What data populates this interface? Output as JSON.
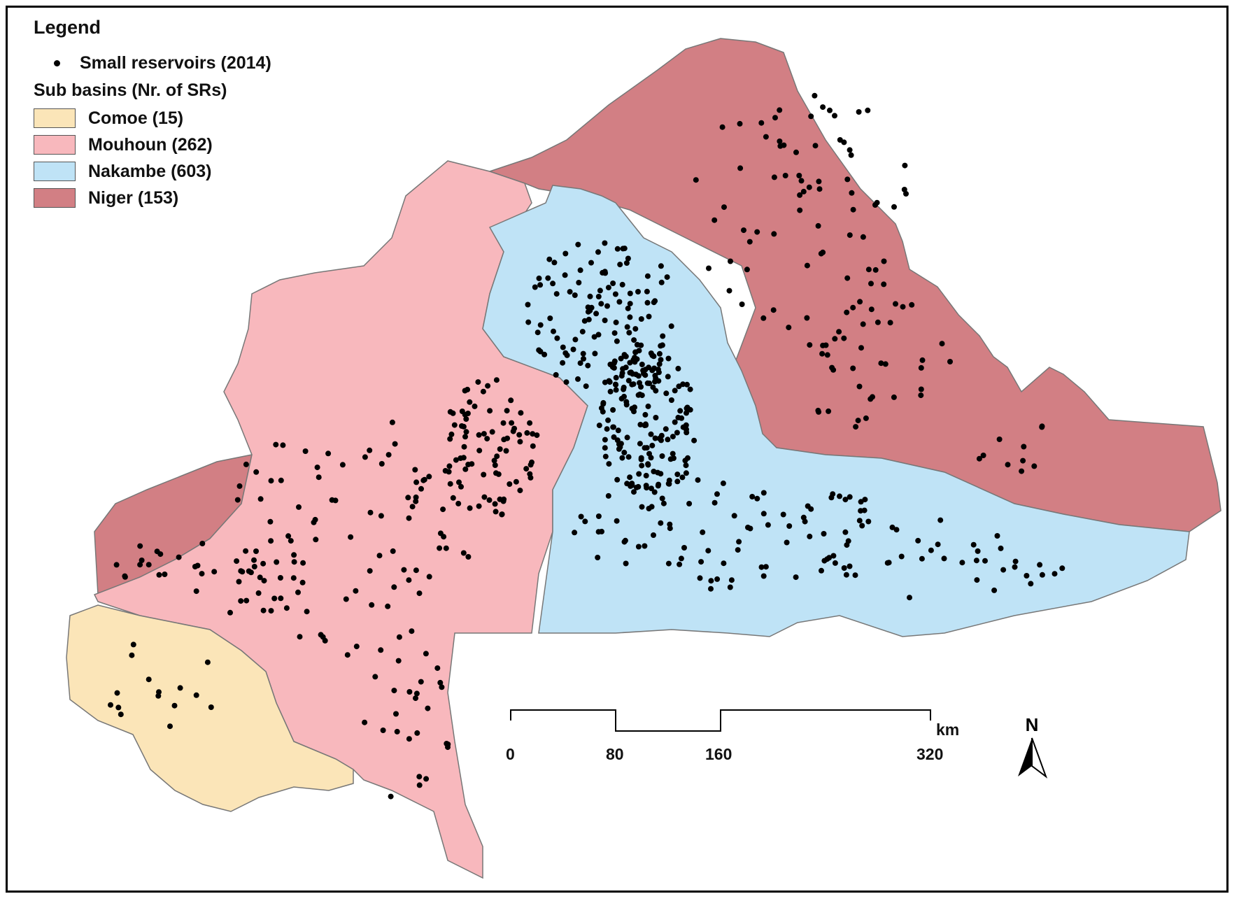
{
  "legend": {
    "title": "Legend",
    "point_label": "Small reservoirs (2014)",
    "sub_title": "Sub basins (Nr. of SRs)",
    "items": [
      {
        "label": "Comoe (15)",
        "color": "#fbe5b8"
      },
      {
        "label": "Mouhoun (262)",
        "color": "#f8b8bd"
      },
      {
        "label": "Nakambe (603)",
        "color": "#bfe3f6"
      },
      {
        "label": "Niger (153)",
        "color": "#d27f84"
      }
    ]
  },
  "scale_bar": {
    "ticks": [
      "0",
      "80",
      "160",
      "320"
    ],
    "unit": "km"
  },
  "north_arrow": {
    "label": "N"
  }
}
